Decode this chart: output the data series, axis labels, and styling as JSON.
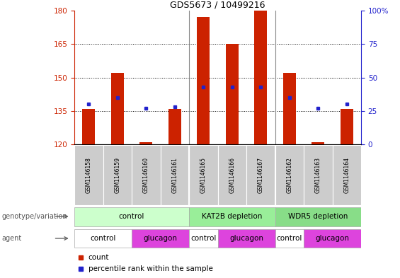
{
  "title": "GDS5673 / 10499216",
  "samples": [
    "GSM1146158",
    "GSM1146159",
    "GSM1146160",
    "GSM1146161",
    "GSM1146165",
    "GSM1146166",
    "GSM1146167",
    "GSM1146162",
    "GSM1146163",
    "GSM1146164"
  ],
  "counts": [
    136,
    152,
    121,
    136,
    177,
    165,
    180,
    152,
    121,
    136
  ],
  "percentile_ranks": [
    30,
    35,
    27,
    28,
    43,
    43,
    43,
    35,
    27,
    30
  ],
  "ymin": 120,
  "ymax": 180,
  "yticks": [
    120,
    135,
    150,
    165,
    180
  ],
  "right_yticks": [
    0,
    25,
    50,
    75,
    100
  ],
  "bar_color": "#cc2200",
  "dot_color": "#2222cc",
  "bar_width": 0.45,
  "genotype_groups": [
    {
      "label": "control",
      "start": 0,
      "end": 4,
      "color": "#ccffcc"
    },
    {
      "label": "KAT2B depletion",
      "start": 4,
      "end": 7,
      "color": "#99ee99"
    },
    {
      "label": "WDR5 depletion",
      "start": 7,
      "end": 10,
      "color": "#88dd88"
    }
  ],
  "agent_groups": [
    {
      "label": "control",
      "start": 0,
      "end": 2,
      "color": "#ffffff"
    },
    {
      "label": "glucagon",
      "start": 2,
      "end": 4,
      "color": "#dd44dd"
    },
    {
      "label": "control",
      "start": 4,
      "end": 5,
      "color": "#ffffff"
    },
    {
      "label": "glucagon",
      "start": 5,
      "end": 7,
      "color": "#dd44dd"
    },
    {
      "label": "control",
      "start": 7,
      "end": 8,
      "color": "#ffffff"
    },
    {
      "label": "glucagon",
      "start": 8,
      "end": 10,
      "color": "#dd44dd"
    }
  ],
  "legend_count_color": "#cc2200",
  "legend_dot_color": "#2222cc",
  "tick_color_left": "#cc2200",
  "tick_color_right": "#2222cc",
  "genotype_label": "genotype/variation",
  "agent_label": "agent",
  "legend_count_label": "count",
  "legend_percentile_label": "percentile rank within the sample",
  "group_separators": [
    3.5,
    6.5
  ]
}
